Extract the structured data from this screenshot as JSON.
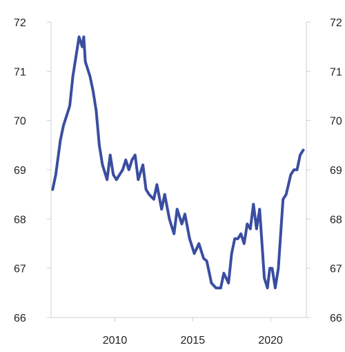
{
  "chart_data": {
    "type": "line",
    "title": "",
    "xlabel": "",
    "ylabel": "",
    "xlim": [
      2005.9,
      2022.3
    ],
    "ylim": [
      66,
      72
    ],
    "grid": false,
    "legend": "none",
    "x_ticks": [
      2010,
      2015,
      2020
    ],
    "x_tick_labels": [
      "2010",
      "2015",
      "2020"
    ],
    "y_ticks": [
      66,
      67,
      68,
      69,
      70,
      71,
      72
    ],
    "y_tick_labels": [
      "66",
      "67",
      "68",
      "69",
      "70",
      "71",
      "72"
    ],
    "series": [
      {
        "color": "#3a4ea0",
        "x": [
          2006.0,
          2006.2,
          2006.5,
          2006.7,
          2006.9,
          2007.1,
          2007.3,
          2007.5,
          2007.7,
          2007.9,
          2008.0,
          2008.1,
          2008.3,
          2008.4,
          2008.6,
          2008.8,
          2009.0,
          2009.2,
          2009.5,
          2009.7,
          2009.9,
          2010.1,
          2010.3,
          2010.5,
          2010.7,
          2010.9,
          2011.1,
          2011.3,
          2011.5,
          2011.8,
          2012.0,
          2012.2,
          2012.5,
          2012.7,
          2013.0,
          2013.2,
          2013.5,
          2013.8,
          2014.0,
          2014.3,
          2014.5,
          2014.8,
          2015.1,
          2015.4,
          2015.7,
          2015.9,
          2016.2,
          2016.5,
          2016.8,
          2017.0,
          2017.3,
          2017.5,
          2017.7,
          2017.9,
          2018.1,
          2018.3,
          2018.5,
          2018.7,
          2018.9,
          2019.1,
          2019.3,
          2019.6,
          2019.8,
          2019.95,
          2020.1,
          2020.3,
          2020.5,
          2020.8,
          2021.0,
          2021.3,
          2021.5,
          2021.7,
          2021.9,
          2022.1
        ],
        "values": [
          68.6,
          68.9,
          69.6,
          69.9,
          70.1,
          70.3,
          70.9,
          71.3,
          71.7,
          71.5,
          71.7,
          71.2,
          71.0,
          70.9,
          70.6,
          70.2,
          69.5,
          69.1,
          68.8,
          69.3,
          68.9,
          68.8,
          68.9,
          69.0,
          69.2,
          69.0,
          69.2,
          69.3,
          68.8,
          69.1,
          68.6,
          68.5,
          68.4,
          68.7,
          68.2,
          68.5,
          68.0,
          67.7,
          68.2,
          67.9,
          68.1,
          67.6,
          67.3,
          67.5,
          67.2,
          67.15,
          66.7,
          66.6,
          66.6,
          66.9,
          66.7,
          67.3,
          67.6,
          67.6,
          67.7,
          67.5,
          67.9,
          67.8,
          68.3,
          67.8,
          68.2,
          66.8,
          66.6,
          67.0,
          67.0,
          66.6,
          67.0,
          68.4,
          68.5,
          68.9,
          69.0,
          69.0,
          69.3,
          69.4
        ]
      }
    ]
  }
}
